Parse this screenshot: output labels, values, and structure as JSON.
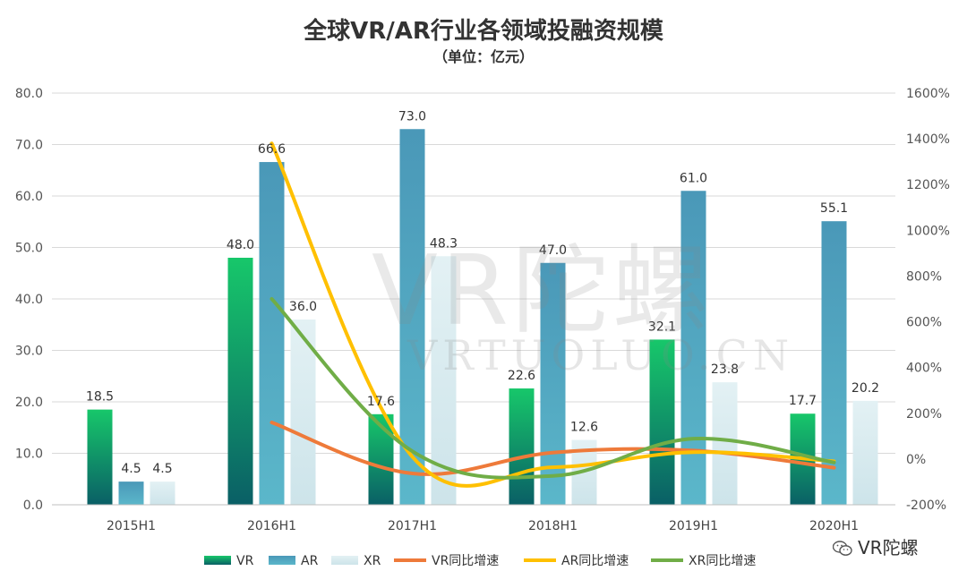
{
  "title": "全球VR/AR行业各领域投融资规模",
  "subtitle": "（单位：亿元）",
  "brand": "VR陀螺",
  "watermark": {
    "mark": "VR陀螺",
    "domain": "VRTUOLUO.CN"
  },
  "chart_data": {
    "type": "bar",
    "categories": [
      "2015H1",
      "2016H1",
      "2017H1",
      "2018H1",
      "2019H1",
      "2020H1"
    ],
    "y_left": {
      "ylim": [
        0,
        80
      ],
      "ticks": [
        "0.0",
        "10.0",
        "20.0",
        "30.0",
        "40.0",
        "50.0",
        "60.0",
        "70.0",
        "80.0"
      ]
    },
    "y_right": {
      "ylim": [
        -200,
        1600
      ],
      "ticks": [
        "-200%",
        "0%",
        "200%",
        "400%",
        "600%",
        "800%",
        "1000%",
        "1200%",
        "1400%",
        "1600%"
      ]
    },
    "series": [
      {
        "name": "VR",
        "type": "bar",
        "values": [
          18.5,
          48.0,
          17.6,
          22.6,
          32.1,
          17.7
        ],
        "labels": [
          "18.5",
          "48.0",
          "17.6",
          "22.6",
          "32.1",
          "17.7"
        ]
      },
      {
        "name": "AR",
        "type": "bar",
        "values": [
          4.5,
          66.6,
          73.0,
          47.0,
          61.0,
          55.1
        ],
        "labels": [
          "4.5",
          "66.6",
          "73.0",
          "47.0",
          "61.0",
          "55.1"
        ]
      },
      {
        "name": "XR",
        "type": "bar",
        "values": [
          4.5,
          36.0,
          48.3,
          12.6,
          23.8,
          20.2
        ],
        "labels": [
          "4.5",
          "36.0",
          "48.3",
          "12.6",
          "23.8",
          "20.2"
        ]
      },
      {
        "name": "VR同比增速",
        "type": "line",
        "axis": "right",
        "values": [
          null,
          160,
          -63,
          28,
          37,
          -38
        ]
      },
      {
        "name": "AR同比增速",
        "type": "line",
        "axis": "right",
        "values": [
          null,
          1380,
          10,
          -36,
          30,
          -10
        ]
      },
      {
        "name": "XR同比增速",
        "type": "line",
        "axis": "right",
        "values": [
          null,
          700,
          34,
          -74,
          89,
          -15
        ]
      }
    ],
    "colors": {
      "VR": [
        "#17c76a",
        "#0a5f66"
      ],
      "AR": [
        "#4fa3c2",
        "#5bb3c8"
      ],
      "XR": [
        "#cfe8ee",
        "#e8f4f6"
      ],
      "VR同比增速": "#ee7a3a",
      "AR同比增速": "#ffc000",
      "XR同比增速": "#70ad47"
    },
    "grid": true,
    "legend": "bottom"
  }
}
